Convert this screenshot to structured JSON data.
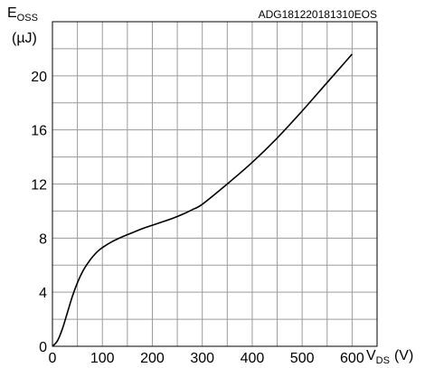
{
  "chart_data": {
    "type": "line",
    "chart_code": "ADG181220181310EOS",
    "ylabel_main": "E",
    "ylabel_sub": "OSS",
    "ylabel_unit": "(µJ)",
    "xlabel_main": "V",
    "xlabel_sub": "DS",
    "xlabel_unit": "(V)",
    "xlim": [
      0,
      650
    ],
    "ylim": [
      0,
      24
    ],
    "x_ticks": [
      "0",
      "100",
      "200",
      "300",
      "400",
      "500",
      "600"
    ],
    "y_ticks": [
      "0",
      "4",
      "8",
      "12",
      "16",
      "20"
    ],
    "x_tick_values": [
      0,
      100,
      200,
      300,
      400,
      500,
      600
    ],
    "y_tick_values": [
      0,
      4,
      8,
      12,
      16,
      20
    ],
    "grid": true,
    "grid_x_step": 50,
    "grid_y_step": 2,
    "series": [
      {
        "color": "#000000",
        "x": [
          0,
          10,
          20,
          30,
          40,
          50,
          60,
          70,
          80,
          90,
          100,
          120,
          140,
          160,
          180,
          200,
          220,
          240,
          260,
          280,
          300,
          350,
          400,
          450,
          500,
          550,
          600
        ],
        "y": [
          0,
          0.4,
          1.3,
          2.5,
          3.7,
          4.7,
          5.5,
          6.1,
          6.6,
          7.0,
          7.3,
          7.75,
          8.1,
          8.4,
          8.7,
          8.95,
          9.2,
          9.45,
          9.75,
          10.1,
          10.5,
          12.0,
          13.6,
          15.4,
          17.4,
          19.5,
          21.6
        ]
      }
    ]
  }
}
